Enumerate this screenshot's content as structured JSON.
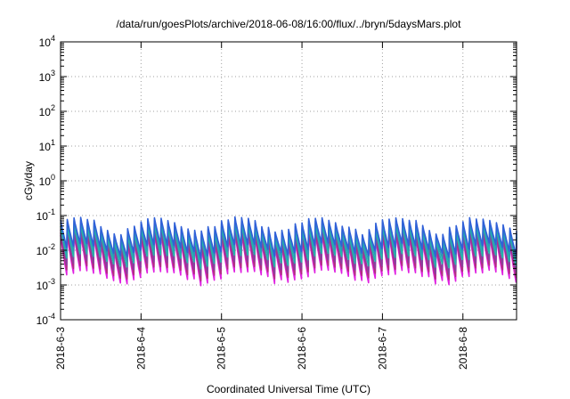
{
  "chart_data": {
    "type": "line",
    "title": "/data/run/goesPlots/archive/2018-06-08/16:00/flux/../bryn/5daysMars.plot",
    "xlabel": "Coordinated Universal Time (UTC)",
    "ylabel": "cGy/day",
    "yscale": "log",
    "ylim": [
      0.0001,
      10000
    ],
    "xlim": [
      "2018-06-03T00:00",
      "2018-06-08T16:00"
    ],
    "y_ticks": [
      {
        "value": 0.0001,
        "mantissa": "10",
        "exp": "-4"
      },
      {
        "value": 0.001,
        "mantissa": "10",
        "exp": "-3"
      },
      {
        "value": 0.01,
        "mantissa": "10",
        "exp": "-2"
      },
      {
        "value": 0.1,
        "mantissa": "10",
        "exp": "-1"
      },
      {
        "value": 1,
        "mantissa": "10",
        "exp": "0"
      },
      {
        "value": 10,
        "mantissa": "10",
        "exp": "1"
      },
      {
        "value": 100,
        "mantissa": "10",
        "exp": "2"
      },
      {
        "value": 1000,
        "mantissa": "10",
        "exp": "3"
      },
      {
        "value": 10000,
        "mantissa": "10",
        "exp": "4"
      }
    ],
    "x_ticks": [
      {
        "value": "2018-06-03T00:00",
        "label": "2018-6-3"
      },
      {
        "value": "2018-06-04T00:00",
        "label": "2018-6-4"
      },
      {
        "value": "2018-06-05T00:00",
        "label": "2018-6-5"
      },
      {
        "value": "2018-06-06T00:00",
        "label": "2018-6-6"
      },
      {
        "value": "2018-06-07T00:00",
        "label": "2018-6-7"
      },
      {
        "value": "2018-06-08T00:00",
        "label": "2018-6-8"
      }
    ],
    "grid": true,
    "pattern": {
      "period_hours": 2,
      "description": "sawtooth: sharp rise at each 2-hour boundary followed by decay"
    },
    "series": [
      {
        "color": "#e020e0",
        "peak": 0.022,
        "trough": 0.0018
      },
      {
        "color": "#b03080",
        "peak": 0.026,
        "trough": 0.0025
      },
      {
        "color": "#8a3fa0",
        "peak": 0.032,
        "trough": 0.0035
      },
      {
        "color": "#20b8a8",
        "peak": 0.04,
        "trough": 0.0055
      },
      {
        "color": "#2a9ab8",
        "peak": 0.05,
        "trough": 0.008
      },
      {
        "color": "#3060d8",
        "peak": 0.06,
        "trough": 0.011
      }
    ]
  }
}
